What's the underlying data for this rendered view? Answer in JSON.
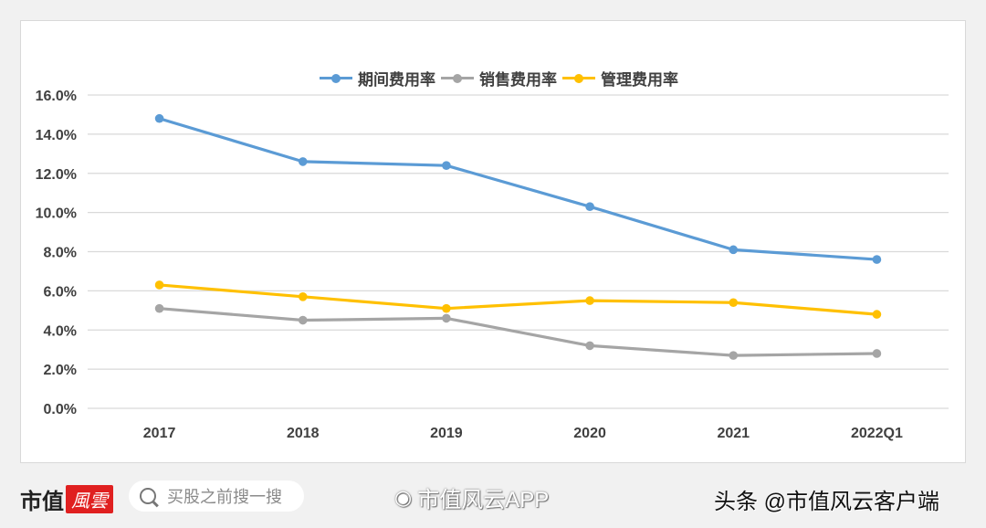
{
  "chart_data": {
    "type": "line",
    "title": "",
    "xlabel": "",
    "ylabel": "",
    "categories": [
      "2017",
      "2018",
      "2019",
      "2020",
      "2021",
      "2022Q1"
    ],
    "ylim": [
      0,
      16
    ],
    "yticks": [
      0,
      2,
      4,
      6,
      8,
      10,
      12,
      14,
      16
    ],
    "ytick_labels": [
      "0.0%",
      "2.0%",
      "4.0%",
      "6.0%",
      "8.0%",
      "10.0%",
      "12.0%",
      "14.0%",
      "16.0%"
    ],
    "grid": true,
    "legend_position": "top-center",
    "series": [
      {
        "name": "期间费用率",
        "color": "#5b9bd5",
        "values": [
          14.8,
          12.6,
          12.4,
          10.3,
          8.1,
          7.6
        ]
      },
      {
        "name": "销售费用率",
        "color": "#a5a5a5",
        "values": [
          5.1,
          4.5,
          4.6,
          3.2,
          2.7,
          2.8
        ]
      },
      {
        "name": "管理费用率",
        "color": "#ffc000",
        "values": [
          6.3,
          5.7,
          5.1,
          5.5,
          5.4,
          4.8
        ]
      }
    ]
  },
  "footer": {
    "logo_text": "市值",
    "logo_badge": "風雲",
    "search_placeholder": "买股之前搜一搜",
    "weibo_label": "市值风云APP",
    "toutiao_label": "头条 @市值风云客户端"
  }
}
